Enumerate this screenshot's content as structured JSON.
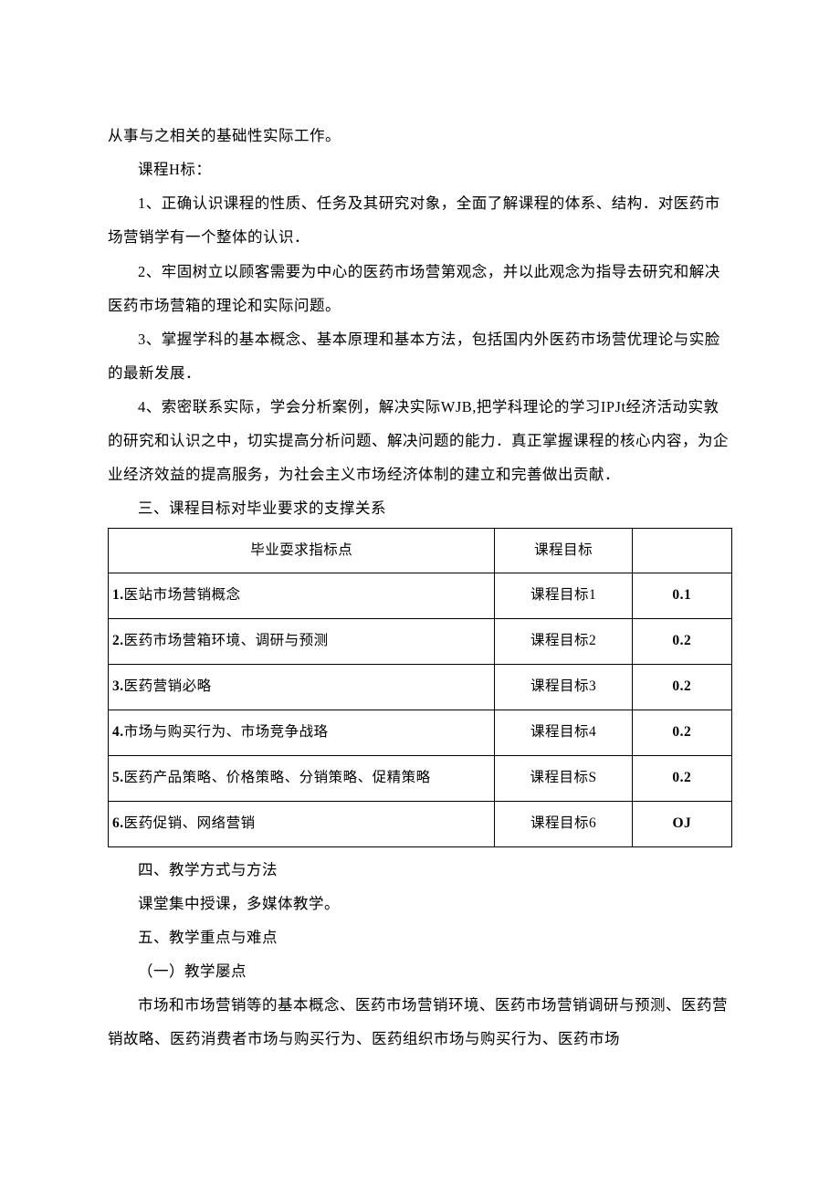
{
  "paragraphs": {
    "p0": "从事与之相关的基础性实际工作。",
    "p1": "课程H标：",
    "p2": "1、正确认识课程的性质、任务及其研究对象，全面了解课程的体系、结构．对医药市场营销学有一个整体的认识．",
    "p3": "2、牢固树立以顾客需要为中心的医药市场营第观念，并以此观念为指导去研究和解决医药市场营箱的理论和实际问题。",
    "p4": "3、掌握学科的基本概念、基本原理和基本方法，包括国内外医药市场营优理论与实脸的最新发展．",
    "p5": "4、索密联系实际，学会分析案例，解决实际WJB,把学科理论的学习IPJt经济活动实敦的研究和认识之中，切实提高分析问题、解决问题的能力．真正掌握课程的核心内容，为企业经济效益的提高服务，为社会主义市场经济体制的建立和完善做出贡献．",
    "s3": "三、课程目标对毕业要求的支撑关系",
    "s4": "四、教学方式与方法",
    "p6": "课堂集中授课，多媒体教学。",
    "s5": "五、教学重点与难点",
    "p7": "（一）教学屡点",
    "p8": "市场和市场营销等的基本概念、医药市场营销环境、医药市场营销调研与预测、医药营销故略、医药消费者市场与购买行为、医药组织市场与购买行为、医药市场"
  },
  "table": {
    "headers": {
      "h1": "毕业耍求指标点",
      "h2": "课程目标",
      "h3": ""
    },
    "rows": [
      {
        "n": "1.",
        "c1": "医站市场营销概念",
        "c2": "课程目标1",
        "c3": "0.1"
      },
      {
        "n": "2.",
        "c1": "医药市场营箱环境、调研与预测",
        "c2": "课程目标2",
        "c3": "0.2"
      },
      {
        "n": "3.",
        "c1": "医药营销必略",
        "c2": "课程目标3",
        "c3": "0.2"
      },
      {
        "n": "4.",
        "c1": "市场与购买行为、市场竞争战珞",
        "c2": "课程目标4",
        "c3": "0.2"
      },
      {
        "n": "5.",
        "c1": "医药产品策略、价格策略、分销策略、促精策略",
        "c2": "课程目标S",
        "c3": "0.2"
      },
      {
        "n": "6.",
        "c1": "医药促销、网络营销",
        "c2": "课程目标6",
        "c3": "OJ"
      }
    ]
  }
}
